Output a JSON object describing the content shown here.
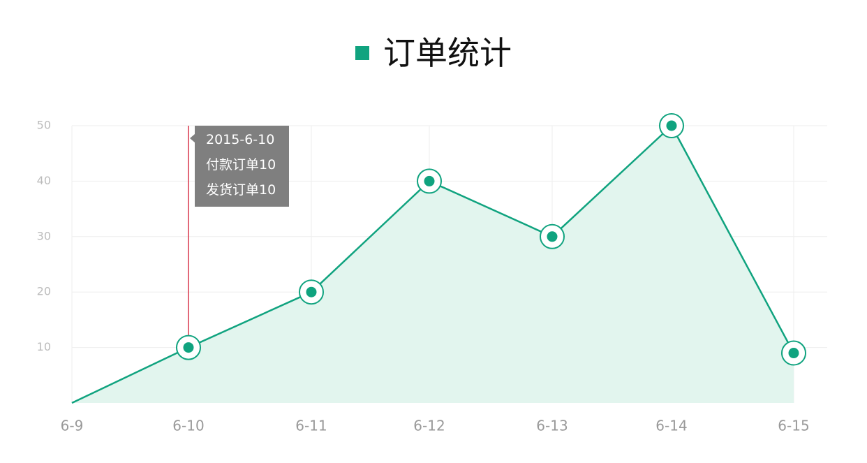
{
  "colors": {
    "accent": "#10a37f",
    "area_fill": "#e2f5ee",
    "grid": "#eeeeee",
    "marker_line": "#d9374b",
    "axis_label_y": "#bbbbbb",
    "axis_label_x": "#999999",
    "tooltip_bg": "#7f7f7f"
  },
  "header": {
    "legend_marker_icon": "square-icon",
    "title": "订单统计"
  },
  "tooltip": {
    "date": "2015-6-10",
    "paid": "付款订单10",
    "shipped": "发货订单10"
  },
  "chart_data": {
    "type": "area",
    "title": "订单统计",
    "categories": [
      "6-9",
      "6-10",
      "6-11",
      "6-12",
      "6-13",
      "6-14",
      "6-15"
    ],
    "series": [
      {
        "name": "订单统计",
        "values": [
          0,
          10,
          20,
          40,
          30,
          50,
          9
        ],
        "markers": [
          false,
          true,
          true,
          true,
          true,
          true,
          true
        ]
      }
    ],
    "yticks": [
      10,
      20,
      30,
      40,
      50
    ],
    "ylim": [
      0,
      50
    ],
    "grid": true,
    "highlight_category": "6-10"
  }
}
